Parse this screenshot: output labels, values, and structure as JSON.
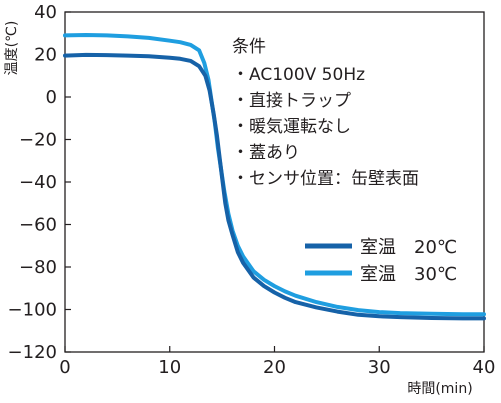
{
  "chart_data": {
    "type": "line",
    "xlabel": "時間(min)",
    "ylabel": "温度(℃)",
    "xlim": [
      0,
      40
    ],
    "ylim": [
      -120,
      40
    ],
    "xticks": [
      "0",
      "10",
      "20",
      "30",
      "40"
    ],
    "yticks": [
      "40",
      "20",
      "0",
      "−20",
      "−40",
      "−60",
      "−80",
      "−100",
      "−120"
    ],
    "grid": false,
    "legend_position": "center-right",
    "annotation_title": "条件",
    "annotations": [
      "・AC100V 50Hz",
      "・直接トラップ",
      "・暖気運転なし",
      "・蓋あり",
      "・センサ位置：缶壁表面"
    ],
    "series": [
      {
        "name": "室温　20℃",
        "color": "#1662a8",
        "x": [
          0,
          2,
          4,
          6,
          8,
          10,
          11,
          12,
          12.8,
          13.4,
          13.8,
          14.2,
          14.5,
          14.8,
          15,
          15.3,
          15.6,
          16,
          16.5,
          17,
          18,
          19,
          20,
          21,
          22,
          24,
          26,
          28,
          30,
          32,
          35,
          38,
          40
        ],
        "y": [
          19.5,
          19.8,
          19.7,
          19.5,
          19.2,
          18.5,
          18,
          17,
          14.5,
          10,
          3,
          -8,
          -18,
          -30,
          -38,
          -50,
          -58,
          -65,
          -73,
          -78,
          -85,
          -89,
          -92,
          -94.5,
          -96.5,
          -99,
          -101,
          -102.5,
          -103.2,
          -103.6,
          -104,
          -104.2,
          -104.2
        ]
      },
      {
        "name": "室温　30℃",
        "color": "#1f9ee0",
        "x": [
          0,
          2,
          4,
          6,
          8,
          10,
          11,
          12,
          12.8,
          13.3,
          13.7,
          14,
          14.3,
          14.6,
          14.9,
          15.2,
          15.6,
          16,
          16.5,
          17,
          18,
          19,
          20,
          21,
          22,
          24,
          26,
          28,
          30,
          32,
          35,
          38,
          40
        ],
        "y": [
          29,
          29.2,
          29,
          28.5,
          27.8,
          26.5,
          25.8,
          24.5,
          22,
          16,
          8,
          -2,
          -12,
          -24,
          -34,
          -44,
          -55,
          -63,
          -70,
          -75,
          -82,
          -86,
          -89,
          -91.5,
          -93.5,
          -96.5,
          -98.8,
          -100.3,
          -101.2,
          -101.7,
          -102,
          -102.2,
          -102.2
        ]
      }
    ]
  }
}
